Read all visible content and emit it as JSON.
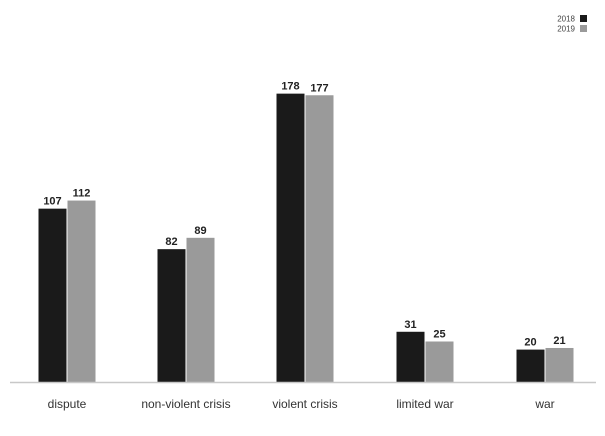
{
  "chart_data": {
    "type": "bar",
    "categories": [
      "dispute",
      "non-violent crisis",
      "violent crisis",
      "limited war",
      "war"
    ],
    "series": [
      {
        "name": "2018",
        "color": "#1a1a1a",
        "values": [
          107,
          82,
          178,
          31,
          20
        ]
      },
      {
        "name": "2019",
        "color": "#9a9a9a",
        "values": [
          112,
          89,
          177,
          25,
          21
        ]
      }
    ],
    "legend_position": "top-right",
    "ylim": [
      0,
      200
    ],
    "grid": false
  }
}
